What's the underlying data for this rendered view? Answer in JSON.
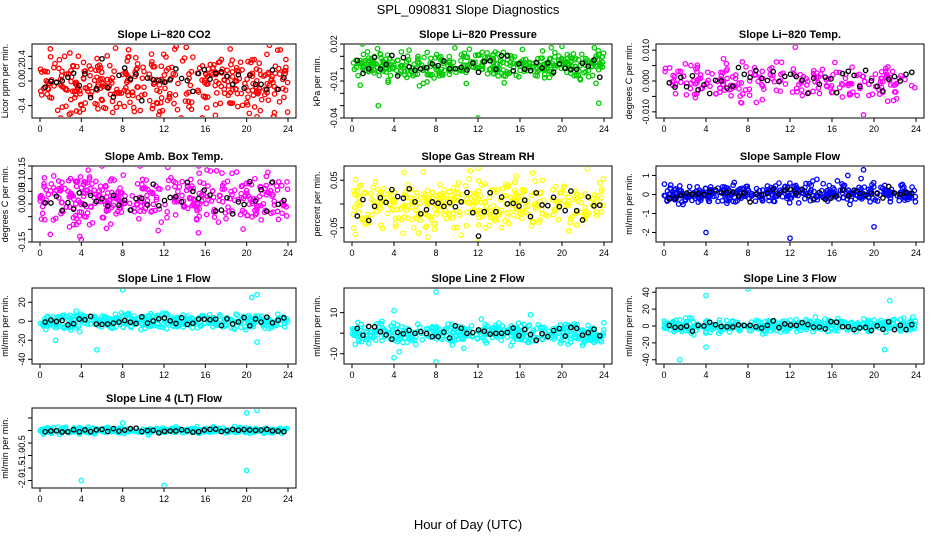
{
  "figure": {
    "title": "SPL_090831  Slope Diagnostics",
    "xlabel": "Hour of Day (UTC)"
  },
  "chart_data": [
    {
      "type": "scatter",
      "title": "Slope Li−820 CO2",
      "ylabel": "Licor ppm per min.",
      "xlim": [
        0,
        24
      ],
      "ylim": [
        -0.6,
        0.6
      ],
      "xticks": [
        0,
        4,
        8,
        12,
        16,
        20,
        24
      ],
      "yticks": [
        -0.4,
        0.0,
        0.2,
        0.4
      ],
      "ytick_labels": [
        "-0.4",
        "0.0",
        "0.2",
        "0.4"
      ],
      "color": "#ff0000",
      "n": 380,
      "spread": 0.25,
      "bias": 0.0,
      "outliers_high": [
        [
          1,
          0.52
        ],
        [
          22.2,
          0.58
        ],
        [
          23,
          0.5
        ]
      ],
      "outliers_low": [
        [
          3,
          -0.52
        ],
        [
          11.5,
          -0.55
        ],
        [
          21,
          -0.58
        ]
      ]
    },
    {
      "type": "scatter",
      "title": "Slope Li−820 Pressure",
      "ylabel": "kPa per min.",
      "xlim": [
        0,
        24
      ],
      "ylim": [
        -0.04,
        0.02
      ],
      "xticks": [
        0,
        4,
        8,
        12,
        16,
        20,
        24
      ],
      "yticks": [
        -0.04,
        -0.03,
        -0.02,
        -0.01,
        0.0,
        0.01,
        0.02
      ],
      "ytick_labels": [
        "-0.04",
        "",
        "",
        "-0.01",
        "",
        "",
        "0.02"
      ],
      "color": "#00cc00",
      "n": 380,
      "spread": 0.006,
      "bias": 0.003,
      "outliers_high": [
        [
          1,
          0.02
        ],
        [
          20,
          0.018
        ]
      ],
      "outliers_low": [
        [
          2.5,
          -0.03
        ],
        [
          12,
          -0.04
        ],
        [
          23.5,
          -0.028
        ]
      ]
    },
    {
      "type": "scatter",
      "title": "Slope Li−820 Temp.",
      "ylabel": "degrees C per min.",
      "xlim": [
        0,
        24
      ],
      "ylim": [
        -0.012,
        0.012
      ],
      "xticks": [
        0,
        4,
        8,
        12,
        16,
        20,
        24
      ],
      "yticks": [
        -0.01,
        -0.005,
        0.0,
        0.005,
        0.01
      ],
      "ytick_labels": [
        "-0.010",
        "",
        "0.000",
        "",
        "0.010"
      ],
      "color": "#ff00ff",
      "n": 220,
      "spread": 0.003,
      "bias": 0.0,
      "outliers_high": [
        [
          12.5,
          0.011
        ]
      ],
      "outliers_low": [
        [
          19,
          -0.011
        ]
      ]
    },
    {
      "type": "scatter",
      "title": "Slope Amb. Box Temp.",
      "ylabel": "degrees C per min.",
      "xlim": [
        0,
        24
      ],
      "ylim": [
        -0.15,
        0.15
      ],
      "xticks": [
        0,
        4,
        8,
        12,
        16,
        20,
        24
      ],
      "yticks": [
        -0.15,
        -0.1,
        -0.05,
        0.0,
        0.05,
        0.1,
        0.15
      ],
      "ytick_labels": [
        "-0.15",
        "",
        "",
        "0.00",
        "0.05",
        "0.10",
        "0.15"
      ],
      "color": "#ff00ff",
      "n": 380,
      "spread": 0.05,
      "bias": 0.02,
      "outliers_high": [
        [
          6,
          0.15
        ],
        [
          16.5,
          0.13
        ]
      ],
      "outliers_low": [
        [
          4,
          -0.14
        ],
        [
          1,
          -0.12
        ]
      ]
    },
    {
      "type": "scatter",
      "title": "Slope Gas Stream RH",
      "ylabel": "percent per min.",
      "xlim": [
        0,
        24
      ],
      "ylim": [
        -0.08,
        0.08
      ],
      "xticks": [
        0,
        4,
        8,
        12,
        16,
        20,
        24
      ],
      "yticks": [
        -0.05,
        0.0,
        0.05
      ],
      "ytick_labels": [
        "-0.05",
        "",
        "0.05"
      ],
      "color": "#ffff00",
      "n": 380,
      "spread": 0.03,
      "bias": 0.0,
      "outliers_high": [
        [
          12,
          0.075
        ]
      ],
      "outliers_low": [
        [
          12,
          -0.08
        ]
      ]
    },
    {
      "type": "scatter",
      "title": "Slope Sample Flow",
      "ylabel": "ml/min per min.",
      "xlim": [
        0,
        24
      ],
      "ylim": [
        -2.5,
        1.5
      ],
      "xticks": [
        0,
        4,
        8,
        12,
        16,
        20,
        24
      ],
      "yticks": [
        -2,
        -1,
        0,
        1
      ],
      "ytick_labels": [
        "-2",
        "-1",
        "0",
        "1"
      ],
      "color": "#0000ff",
      "n": 380,
      "spread": 0.25,
      "bias": 0.05,
      "outliers_high": [
        [
          17.5,
          1.0
        ],
        [
          19,
          1.3
        ]
      ],
      "outliers_low": [
        [
          4,
          -2.0
        ],
        [
          12,
          -2.3
        ],
        [
          20,
          -1.7
        ]
      ]
    },
    {
      "type": "scatter",
      "title": "Slope Line 1 Flow",
      "ylabel": "ml/min per min.",
      "xlim": [
        0,
        24
      ],
      "ylim": [
        -45,
        35
      ],
      "xticks": [
        0,
        4,
        8,
        12,
        16,
        20,
        24
      ],
      "yticks": [
        -40,
        -20,
        0,
        20
      ],
      "ytick_labels": [
        "-40",
        "-20",
        "0",
        "20"
      ],
      "color": "#00ffff",
      "n": 380,
      "spread": 4,
      "bias": 0,
      "outliers_high": [
        [
          8,
          33
        ],
        [
          20.5,
          25
        ],
        [
          21,
          28
        ]
      ],
      "outliers_low": [
        [
          5.5,
          -30
        ],
        [
          1.5,
          -20
        ],
        [
          21,
          -22
        ]
      ]
    },
    {
      "type": "scatter",
      "title": "Slope Line 2 Flow",
      "ylabel": "ml/min per min.",
      "xlim": [
        0,
        24
      ],
      "ylim": [
        -15,
        22
      ],
      "xticks": [
        0,
        4,
        8,
        12,
        16,
        20,
        24
      ],
      "yticks": [
        -10,
        0,
        10
      ],
      "ytick_labels": [
        "-10",
        "",
        "10"
      ],
      "color": "#00ffff",
      "n": 380,
      "spread": 2.5,
      "bias": 0,
      "outliers_high": [
        [
          4,
          11
        ],
        [
          8,
          20
        ],
        [
          17,
          9
        ]
      ],
      "outliers_low": [
        [
          4,
          -12
        ],
        [
          8,
          -14
        ],
        [
          4.5,
          -9
        ]
      ]
    },
    {
      "type": "scatter",
      "title": "Slope Line 3 Flow",
      "ylabel": "ml/min per min.",
      "xlim": [
        0,
        24
      ],
      "ylim": [
        -45,
        45
      ],
      "xticks": [
        0,
        4,
        8,
        12,
        16,
        20,
        24
      ],
      "yticks": [
        -40,
        -20,
        0,
        20,
        40
      ],
      "ytick_labels": [
        "-40",
        "-20",
        "0",
        "20",
        "40"
      ],
      "color": "#00ffff",
      "n": 380,
      "spread": 4,
      "bias": 0,
      "outliers_high": [
        [
          8,
          44
        ],
        [
          4,
          36
        ],
        [
          21.5,
          30
        ]
      ],
      "outliers_low": [
        [
          1.5,
          -40
        ],
        [
          21,
          -28
        ],
        [
          4,
          -25
        ]
      ]
    },
    {
      "type": "scatter",
      "title": "Slope Line 4 (LT) Flow",
      "ylabel": "ml/min per min.",
      "xlim": [
        0,
        24
      ],
      "ylim": [
        -2.3,
        0.9
      ],
      "xticks": [
        0,
        4,
        8,
        12,
        16,
        20,
        24
      ],
      "yticks": [
        -2,
        -1.5,
        -1,
        -0.5,
        0,
        0.5
      ],
      "ytick_labels": [
        "-2.0",
        "-1.5",
        "-1.0",
        "-0.5",
        "",
        ""
      ],
      "color": "#00ffff",
      "n": 380,
      "spread": 0.06,
      "bias": 0,
      "outliers_high": [
        [
          20,
          0.7
        ],
        [
          21,
          0.8
        ],
        [
          8,
          0.3
        ]
      ],
      "outliers_low": [
        [
          4,
          -2.0
        ],
        [
          12,
          -2.2
        ],
        [
          20,
          -1.6
        ]
      ]
    }
  ]
}
